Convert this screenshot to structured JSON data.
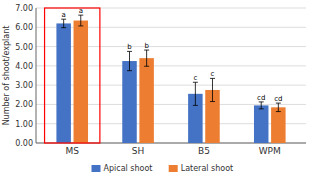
{
  "chart_data": {
    "type": "bar",
    "categories": [
      "MS",
      "SH",
      "B5",
      "WPM"
    ],
    "series": [
      {
        "name": "Apical shoot",
        "color": "#4472C4",
        "values": [
          6.2,
          4.25,
          2.55,
          1.95
        ],
        "errors": [
          0.22,
          0.5,
          0.6,
          0.18
        ],
        "annotations": [
          "a",
          "b",
          "c",
          "cd"
        ]
      },
      {
        "name": "Lateral shoot",
        "color": "#ED7D31",
        "values": [
          6.35,
          4.4,
          2.75,
          1.85
        ],
        "errors": [
          0.28,
          0.42,
          0.6,
          0.22
        ],
        "annotations": [
          "a",
          "b",
          "c",
          "cd"
        ]
      }
    ],
    "ylabel": "Number of shoot/explant",
    "ylim": [
      0,
      7.0
    ],
    "yticks": [
      {
        "value": 0,
        "label": "0.00"
      },
      {
        "value": 1,
        "label": "1.00"
      },
      {
        "value": 2,
        "label": "2.00"
      },
      {
        "value": 3,
        "label": "3.00"
      },
      {
        "value": 4,
        "label": "4.00"
      },
      {
        "value": 5,
        "label": "5.00"
      },
      {
        "value": 6,
        "label": "6.00"
      },
      {
        "value": 7,
        "label": "7.00"
      }
    ],
    "grid": true,
    "legend": "bottom",
    "highlight": {
      "category": "MS",
      "color": "#FF0000"
    }
  }
}
